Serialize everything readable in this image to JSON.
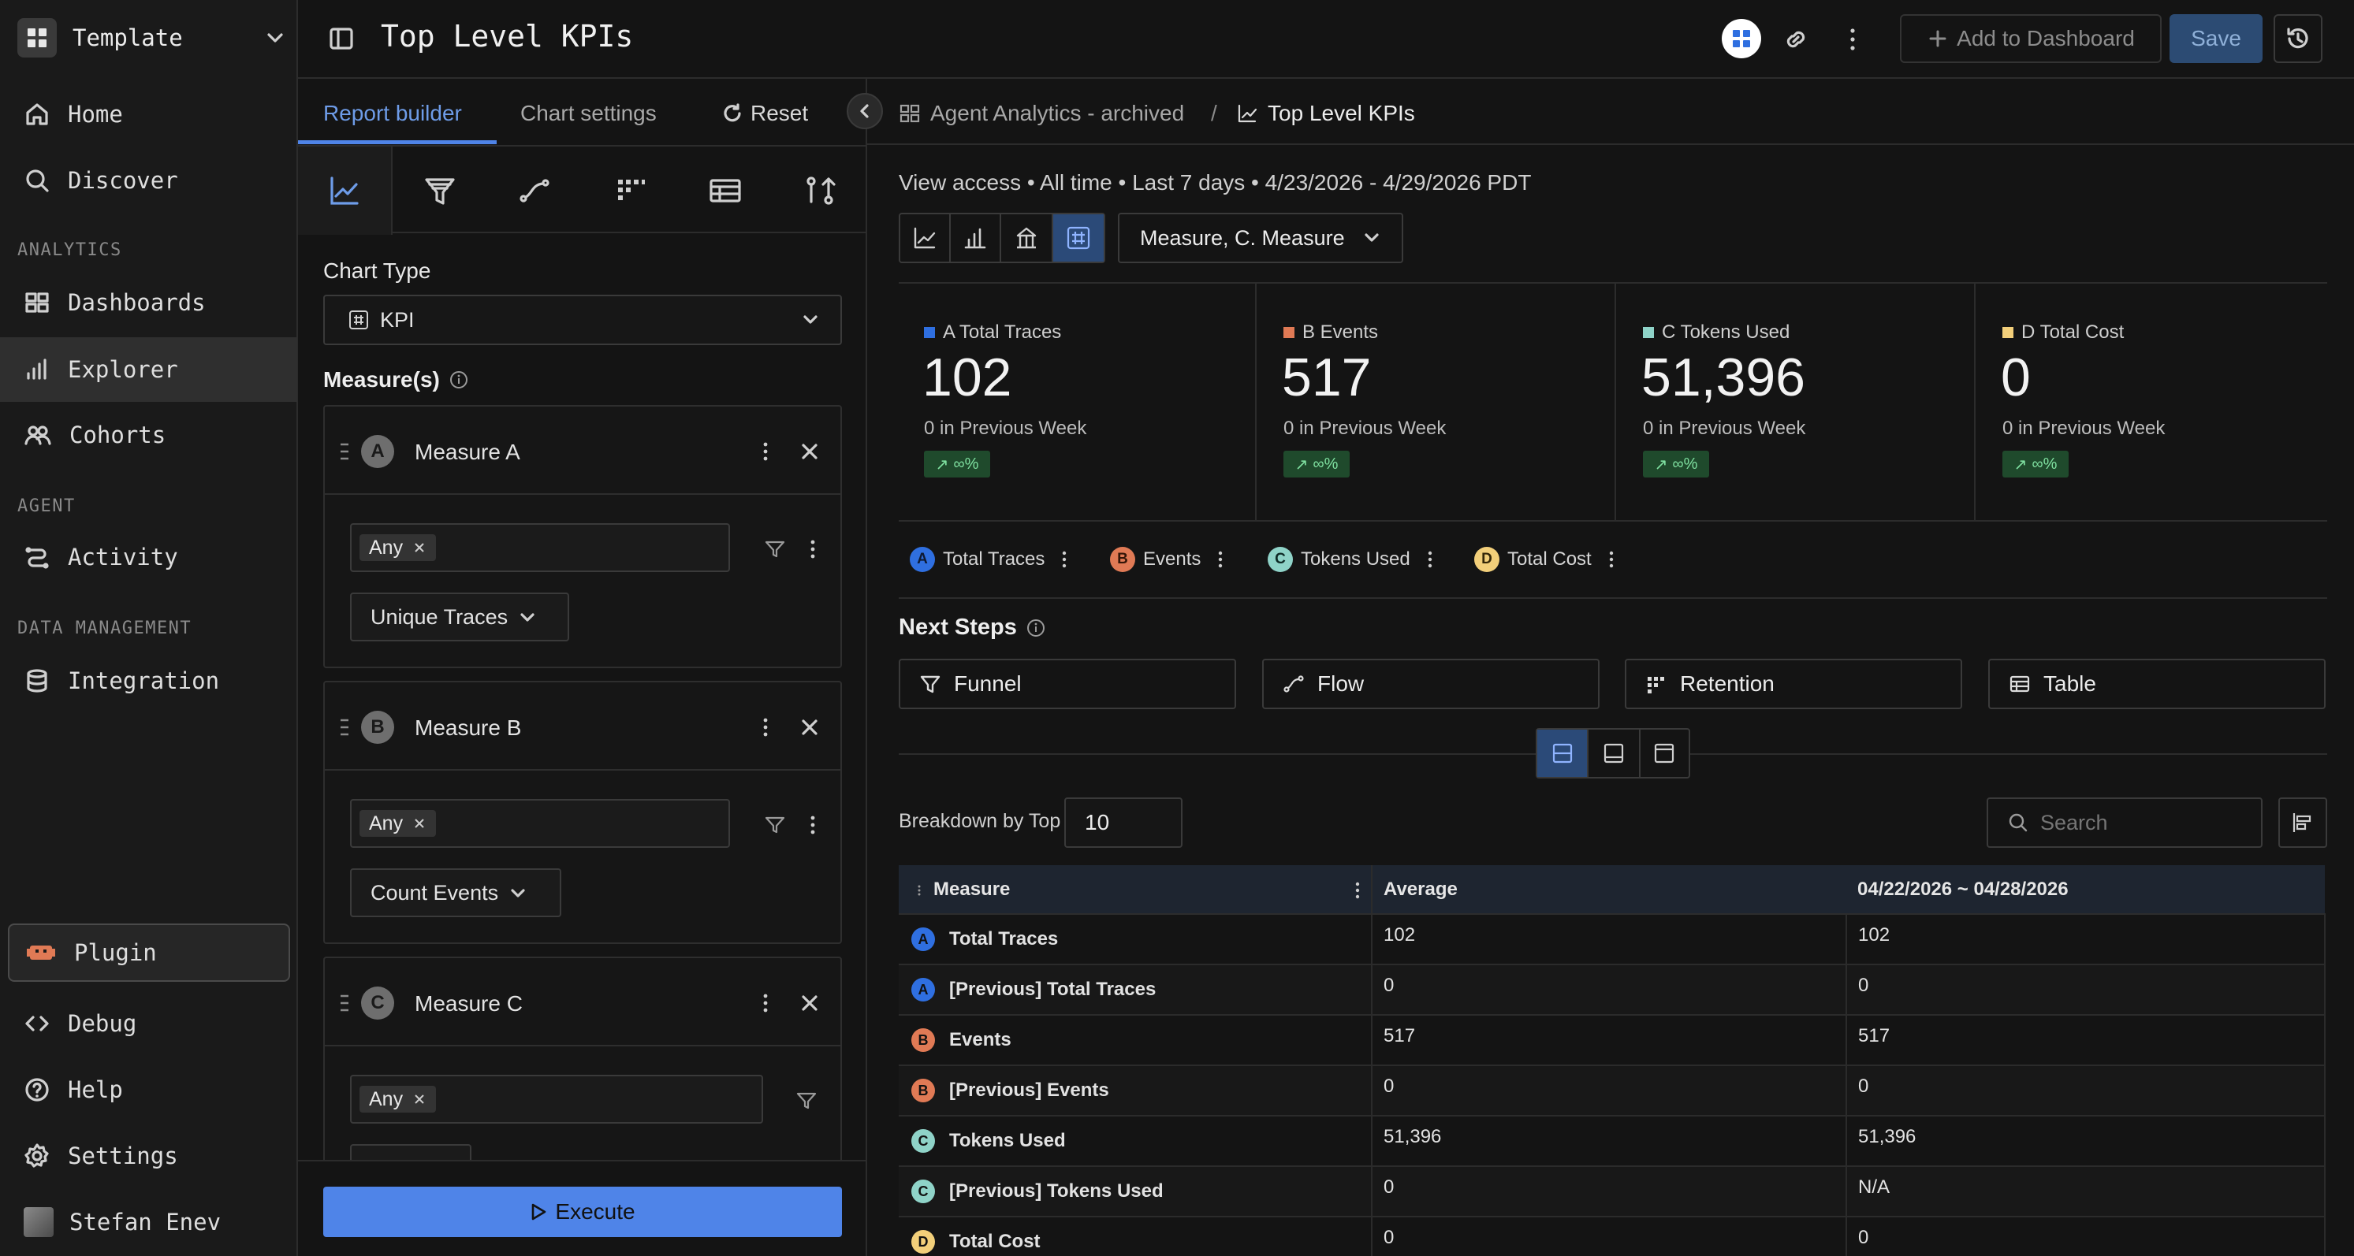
{
  "workspace": {
    "name": "Template"
  },
  "nav": {
    "home": "Home",
    "discover": "Discover",
    "analytics_header": "ANALYTICS",
    "dashboards": "Dashboards",
    "explorer": "Explorer",
    "cohorts": "Cohorts",
    "agent_header": "AGENT",
    "activity": "Activity",
    "data_header": "DATA MANAGEMENT",
    "integration": "Integration",
    "plugin": "Plugin",
    "debug": "Debug",
    "help": "Help",
    "settings": "Settings",
    "user": "Stefan Enev"
  },
  "header": {
    "title": "Top Level KPIs",
    "add_to_dashboard": "Add to Dashboard",
    "save": "Save"
  },
  "builder": {
    "tabs": {
      "report": "Report builder",
      "chart": "Chart settings",
      "reset": "Reset"
    },
    "chart_type_label": "Chart Type",
    "chart_type_value": "KPI",
    "measures_label": "Measure(s)",
    "measures": [
      {
        "letter": "A",
        "name": "Measure A",
        "filter": "Any",
        "agg": "Unique Traces"
      },
      {
        "letter": "B",
        "name": "Measure B",
        "filter": "Any",
        "agg": "Count Events"
      },
      {
        "letter": "C",
        "name": "Measure C",
        "filter": "Any"
      }
    ],
    "execute": "Execute"
  },
  "breadcrumb": {
    "parent": "Agent Analytics - archived",
    "sep": "/",
    "current": "Top Level KPIs"
  },
  "summary": "View access • All time • Last 7 days • 4/23/2026 - 4/29/2026 PDT",
  "measure_select": "Measure, C. Measure",
  "kpis": [
    {
      "label": "A Total Traces",
      "value": "102",
      "prev": "0 in Previous Week",
      "delta": "∞%",
      "color": "#2f6fe0"
    },
    {
      "label": "B Events",
      "value": "517",
      "prev": "0 in Previous Week",
      "delta": "∞%",
      "color": "#e07a55"
    },
    {
      "label": "C Tokens Used",
      "value": "51,396",
      "prev": "0 in Previous Week",
      "delta": "∞%",
      "color": "#8fd3c8"
    },
    {
      "label": "D Total Cost",
      "value": "0",
      "prev": "0 in Previous Week",
      "delta": "∞%",
      "color": "#f2cf7a"
    }
  ],
  "legend": [
    {
      "letter": "A",
      "name": "Total Traces"
    },
    {
      "letter": "B",
      "name": "Events"
    },
    {
      "letter": "C",
      "name": "Tokens Used"
    },
    {
      "letter": "D",
      "name": "Total Cost"
    }
  ],
  "next_steps": {
    "title": "Next Steps",
    "items": [
      "Funnel",
      "Flow",
      "Retention",
      "Table"
    ]
  },
  "breakdown": {
    "label": "Breakdown by Top",
    "value": "10",
    "search_placeholder": "Search"
  },
  "table": {
    "headers": [
      "Measure",
      "Average",
      "04/22/2026 ~ 04/28/2026"
    ],
    "rows": [
      {
        "letter": "A",
        "name": "Total Traces",
        "avg": "102",
        "v": "102"
      },
      {
        "letter": "A",
        "name": "[Previous] Total Traces",
        "avg": "0",
        "v": "0"
      },
      {
        "letter": "B",
        "name": "Events",
        "avg": "517",
        "v": "517"
      },
      {
        "letter": "B",
        "name": "[Previous] Events",
        "avg": "0",
        "v": "0"
      },
      {
        "letter": "C",
        "name": "Tokens Used",
        "avg": "51,396",
        "v": "51,396"
      },
      {
        "letter": "C",
        "name": "[Previous] Tokens Used",
        "avg": "0",
        "v": "N/A"
      },
      {
        "letter": "D",
        "name": "Total Cost",
        "avg": "0",
        "v": "0"
      }
    ]
  },
  "colors": {
    "A": "#2f6fe0",
    "B": "#e07a55",
    "C": "#8fd3c8",
    "D": "#f2cf7a",
    "accent": "#4f84e8"
  }
}
